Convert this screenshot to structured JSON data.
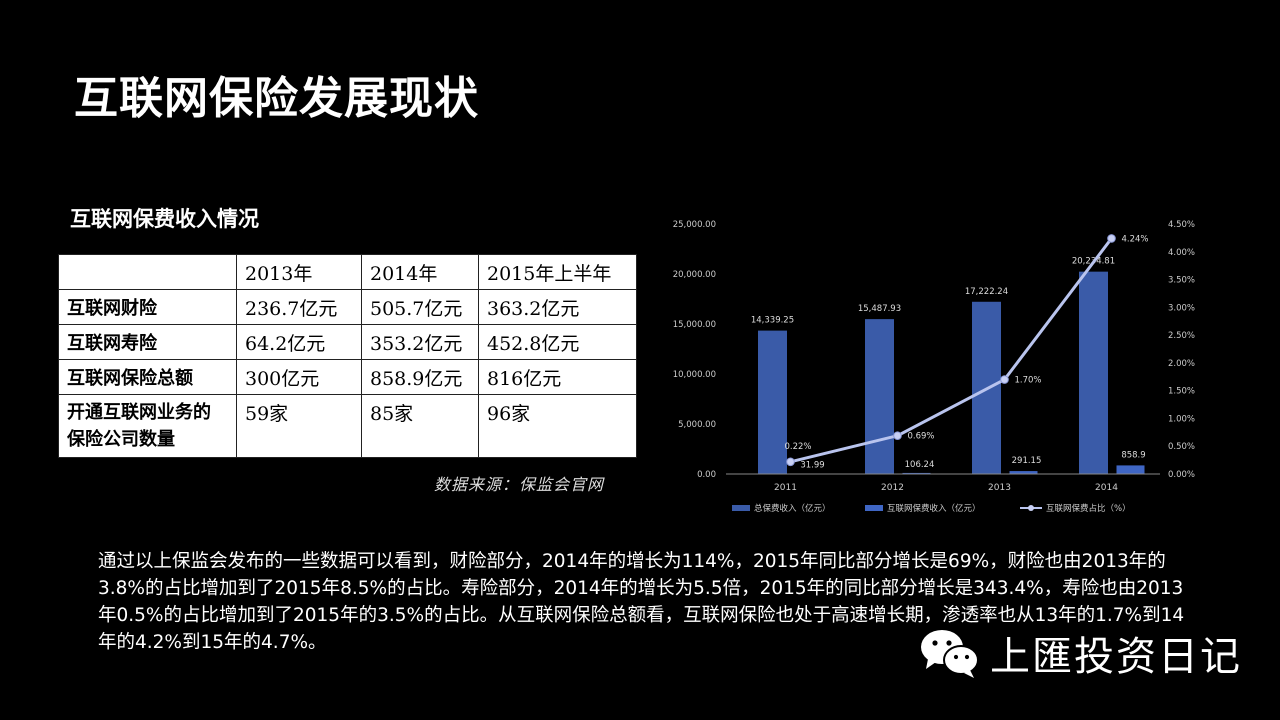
{
  "slide": {
    "title": "互联网保险发展现状",
    "subtitle": "互联网保费收入情况",
    "source": "数据来源：保监会官网",
    "paragraph": "通过以上保监会发布的一些数据可以看到，财险部分，2014年的增长为114%，2015年同比部分增长是69%，财险也由2013年的3.8%的占比增加到了2015年8.5%的占比。寿险部分，2014年的增长为5.5倍，2015年的同比部分增长是343.4%，寿险也由2013年0.5%的占比增加到了2015年的3.5%的占比。从互联网保险总额看，互联网保险也处于高速增长期，渗透率也从13年的1.7%到14年的4.2%到15年的4.7%。",
    "watermark": "上匯投资日记"
  },
  "table": {
    "headers": [
      "",
      "2013年",
      "2014年",
      "2015年上半年"
    ],
    "rows": [
      [
        "互联网财险",
        "236.7亿元",
        "505.7亿元",
        "363.2亿元"
      ],
      [
        "互联网寿险",
        "64.2亿元",
        "353.2亿元",
        "452.8亿元"
      ],
      [
        "互联网保险总额",
        "300亿元",
        "858.9亿元",
        "816亿元"
      ],
      [
        "开通互联网业务的保险公司数量",
        "59家",
        "85家",
        "96家"
      ]
    ]
  },
  "chart_data": {
    "type": "bar",
    "categories": [
      "2011",
      "2012",
      "2013",
      "2014"
    ],
    "series": [
      {
        "name": "总保费收入（亿元）",
        "type": "bar",
        "axis": "left",
        "color": "#3a5ba8",
        "values": [
          14339.25,
          15487.93,
          17222.24,
          20234.81
        ],
        "labels": [
          "14,339.25",
          "15,487.93",
          "17,222.24",
          "20,234.81"
        ]
      },
      {
        "name": "互联网保费收入（亿元）",
        "type": "bar",
        "axis": "left",
        "color": "#3f66c4",
        "values": [
          31.99,
          106.24,
          291.15,
          858.9
        ],
        "labels": [
          "31.99",
          "106.24",
          "291.15",
          "858.9"
        ]
      },
      {
        "name": "互联网保费占比（%）",
        "type": "line",
        "axis": "right",
        "color": "#b9c4ee",
        "values": [
          0.22,
          0.69,
          1.7,
          4.24
        ],
        "labels": [
          "0.22%",
          "0.69%",
          "1.70%",
          "4.24%"
        ]
      }
    ],
    "y_left": {
      "min": 0,
      "max": 25000,
      "ticks": [
        "0.00",
        "5,000.00",
        "10,000.00",
        "15,000.00",
        "20,000.00",
        "25,000.00"
      ]
    },
    "y_right": {
      "min": 0,
      "max": 4.5,
      "ticks": [
        "0.00%",
        "0.50%",
        "1.00%",
        "1.50%",
        "2.00%",
        "2.50%",
        "3.00%",
        "3.50%",
        "4.00%",
        "4.50%"
      ]
    },
    "legend_position": "bottom",
    "grid": false
  }
}
